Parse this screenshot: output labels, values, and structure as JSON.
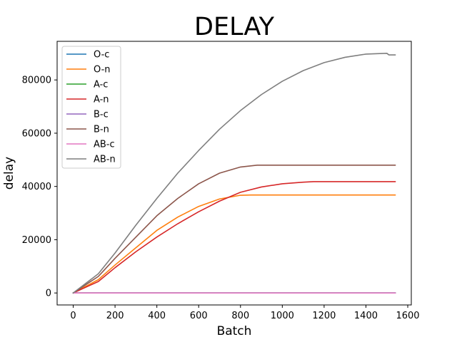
{
  "chart_data": {
    "type": "line",
    "title": "DELAY",
    "xlabel": "Batch",
    "ylabel": "delay",
    "xlim": [
      -77,
      1617
    ],
    "ylim": [
      -4500,
      94500
    ],
    "xticks": [
      0,
      200,
      400,
      600,
      800,
      1000,
      1200,
      1400,
      1600
    ],
    "yticks": [
      0,
      20000,
      40000,
      60000,
      80000
    ],
    "grid": false,
    "legend_position": "upper-left",
    "series": [
      {
        "name": "O-c",
        "color": "#1f77b4",
        "x": [
          0,
          1540
        ],
        "y": [
          0,
          0
        ]
      },
      {
        "name": "O-n",
        "color": "#ff7f0e",
        "x": [
          0,
          120,
          200,
          300,
          400,
          500,
          600,
          700,
          800,
          850,
          1000,
          1200,
          1400,
          1540
        ],
        "y": [
          0,
          5000,
          10500,
          17000,
          23500,
          28500,
          32500,
          35300,
          36700,
          36800,
          36800,
          36800,
          36800,
          36800
        ]
      },
      {
        "name": "A-c",
        "color": "#2ca02c",
        "x": [
          0,
          1540
        ],
        "y": [
          0,
          0
        ]
      },
      {
        "name": "A-n",
        "color": "#d62728",
        "x": [
          0,
          120,
          200,
          300,
          400,
          500,
          600,
          700,
          800,
          900,
          1000,
          1100,
          1150,
          1300,
          1540
        ],
        "y": [
          0,
          4300,
          9500,
          15500,
          21000,
          26000,
          30500,
          34500,
          37800,
          39800,
          41000,
          41600,
          41800,
          41800,
          41800
        ]
      },
      {
        "name": "B-c",
        "color": "#9467bd",
        "x": [
          0,
          1540
        ],
        "y": [
          0,
          0
        ]
      },
      {
        "name": "B-n",
        "color": "#8c564b",
        "x": [
          0,
          120,
          200,
          300,
          400,
          500,
          600,
          700,
          800,
          880,
          1000,
          1200,
          1400,
          1540
        ],
        "y": [
          0,
          6200,
          13000,
          21000,
          29000,
          35500,
          41000,
          45000,
          47300,
          48000,
          48000,
          48000,
          48000,
          48000
        ]
      },
      {
        "name": "AB-c",
        "color": "#e377c2",
        "x": [
          0,
          1540
        ],
        "y": [
          0,
          0
        ]
      },
      {
        "name": "AB-n",
        "color": "#7f7f7f",
        "x": [
          0,
          120,
          200,
          300,
          400,
          500,
          600,
          700,
          800,
          900,
          1000,
          1100,
          1200,
          1300,
          1400,
          1500,
          1510,
          1540
        ],
        "y": [
          0,
          7200,
          15000,
          25500,
          35500,
          45000,
          53500,
          61500,
          68500,
          74500,
          79500,
          83500,
          86500,
          88500,
          89700,
          90000,
          89400,
          89400
        ]
      }
    ]
  }
}
